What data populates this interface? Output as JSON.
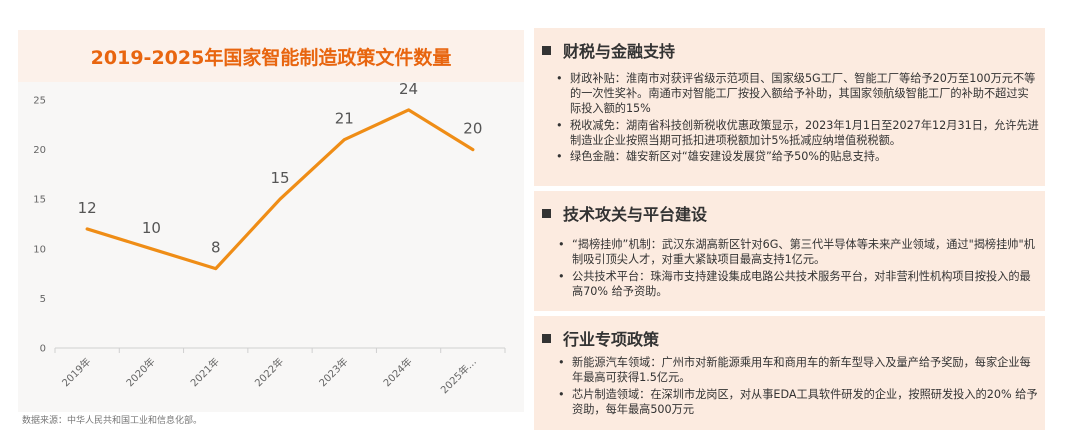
{
  "chart_data": {
    "type": "line",
    "title": "2019-2025年国家智能制造政策文件数量",
    "categories": [
      "2019年",
      "2020年",
      "2021年",
      "2022年",
      "2023年",
      "2024年",
      "2025年…"
    ],
    "values": [
      12,
      10,
      8,
      15,
      21,
      24,
      20
    ],
    "value_labels": [
      "12",
      "10",
      "8",
      "15",
      "21",
      "24",
      "20"
    ],
    "y_ticks": [
      "0",
      "5",
      "10",
      "15",
      "20",
      "25"
    ],
    "ylim": [
      0,
      25
    ],
    "grid": false,
    "legend": "none",
    "line_color": "#ef8d16"
  },
  "source": "数据来源：中华人民共和国工业和信息化部。",
  "sections": [
    {
      "title": "财税与金融支持",
      "items": [
        "财政补贴：淮南市对获评省级示范项目、国家级5G工厂、智能工厂等给予20万至100万元不等的一次性奖补。南通市对智能工厂按投入额给予补助，其国家领航级智能工厂的补助不超过实际投入额的15%",
        "税收减免：湖南省科技创新税收优惠政策显示，2023年1月1日至2027年12月31日，允许先进制造业企业按照当期可抵扣进项税额加计5%抵减应纳增值税税额。",
        "绿色金融：雄安新区对“雄安建设发展贷”给予50%的贴息支持。"
      ]
    },
    {
      "title": "技术攻关与平台建设",
      "items": [
        "“揭榜挂帅”机制：武汉东湖高新区针对6G、第三代半导体等未来产业领域，通过\"揭榜挂帅\"机制吸引顶尖人才，对重大紧缺项目最高支持1亿元。",
        "公共技术平台：珠海市支持建设集成电路公共技术服务平台，对非营利性机构项目按投入的最高70% 给予资助。"
      ]
    },
    {
      "title": "行业专项政策",
      "items": [
        "新能源汽车领域：广州市对新能源乘用车和商用车的新车型导入及量产给予奖励，每家企业每年最高可获得1.5亿元。",
        "芯片制造领域：在深圳市龙岗区，对从事EDA工具软件研发的企业，按照研发投入的20% 给予资助，每年最高500万元"
      ]
    }
  ]
}
